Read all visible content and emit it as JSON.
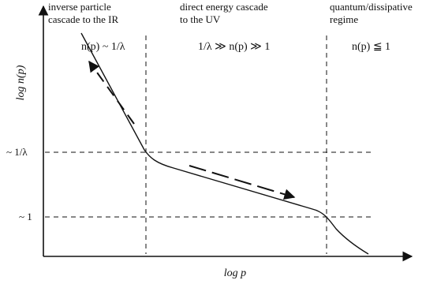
{
  "axes": {
    "y_label": "log n(p)",
    "x_label": "log p",
    "y_ticks": [
      "~ 1/λ",
      "~ 1"
    ]
  },
  "regions": [
    {
      "title_lines": [
        "inverse particle",
        "cascade to the IR"
      ],
      "condition": "n(p) ~ 1/λ"
    },
    {
      "title_lines": [
        "direct energy cascade",
        "to the UV"
      ],
      "condition": "1/λ ≫ n(p) ≫ 1"
    },
    {
      "title_lines": [
        "quantum/dissipative",
        "regime"
      ],
      "condition": "n(p) ≦ 1"
    }
  ],
  "colors": {
    "ink": "#111111"
  }
}
